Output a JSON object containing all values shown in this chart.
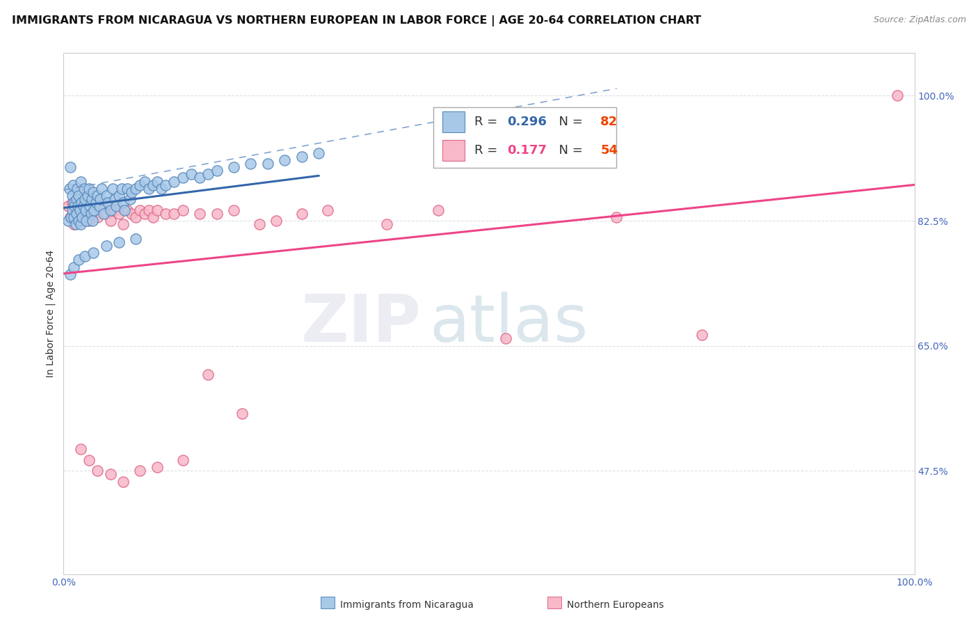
{
  "title": "IMMIGRANTS FROM NICARAGUA VS NORTHERN EUROPEAN IN LABOR FORCE | AGE 20-64 CORRELATION CHART",
  "source": "Source: ZipAtlas.com",
  "ylabel": "In Labor Force | Age 20-64",
  "legend_label_blue": "Immigrants from Nicaragua",
  "legend_label_pink": "Northern Europeans",
  "r_blue": 0.296,
  "n_blue": 82,
  "r_pink": 0.177,
  "n_pink": 54,
  "color_blue_fill": "#a8c8e8",
  "color_blue_edge": "#5588bb",
  "color_blue_line": "#3366aa",
  "color_blue_dash": "#7799cc",
  "color_pink_fill": "#f8b8c8",
  "color_pink_edge": "#dd6688",
  "color_pink_line": "#ee4488",
  "xlim": [
    0.0,
    1.0
  ],
  "ylim": [
    0.33,
    1.06
  ],
  "ytick_positions": [
    0.475,
    0.65,
    0.825,
    1.0
  ],
  "ytick_labels": [
    "47.5%",
    "65.0%",
    "82.5%",
    "100.0%"
  ],
  "grid_color": "#e0e0e8",
  "background_color": "#ffffff",
  "title_color": "#111111",
  "source_color": "#888888",
  "tick_color": "#4466bb",
  "title_fontsize": 11.5,
  "tick_fontsize": 10,
  "legend_r_blue_color": "#3366aa",
  "legend_n_blue_color": "#ee4400",
  "legend_r_pink_color": "#ee4488",
  "legend_n_pink_color": "#ee4400",
  "blue_scatter_x": [
    0.005,
    0.007,
    0.008,
    0.009,
    0.01,
    0.01,
    0.011,
    0.012,
    0.012,
    0.013,
    0.014,
    0.015,
    0.015,
    0.016,
    0.017,
    0.018,
    0.018,
    0.019,
    0.02,
    0.02,
    0.021,
    0.022,
    0.023,
    0.024,
    0.025,
    0.026,
    0.027,
    0.028,
    0.03,
    0.031,
    0.032,
    0.033,
    0.034,
    0.035,
    0.036,
    0.038,
    0.04,
    0.042,
    0.043,
    0.045,
    0.047,
    0.05,
    0.052,
    0.055,
    0.058,
    0.06,
    0.062,
    0.065,
    0.068,
    0.07,
    0.072,
    0.075,
    0.078,
    0.08,
    0.085,
    0.09,
    0.095,
    0.1,
    0.105,
    0.11,
    0.115,
    0.12,
    0.13,
    0.14,
    0.15,
    0.16,
    0.17,
    0.18,
    0.2,
    0.22,
    0.24,
    0.26,
    0.28,
    0.3,
    0.008,
    0.012,
    0.018,
    0.025,
    0.035,
    0.05,
    0.065,
    0.085
  ],
  "blue_scatter_y": [
    0.825,
    0.87,
    0.9,
    0.83,
    0.86,
    0.84,
    0.875,
    0.85,
    0.83,
    0.845,
    0.82,
    0.855,
    0.835,
    0.87,
    0.845,
    0.825,
    0.86,
    0.84,
    0.88,
    0.82,
    0.85,
    0.83,
    0.845,
    0.87,
    0.855,
    0.84,
    0.825,
    0.86,
    0.87,
    0.845,
    0.835,
    0.855,
    0.825,
    0.865,
    0.84,
    0.85,
    0.86,
    0.845,
    0.855,
    0.87,
    0.835,
    0.86,
    0.85,
    0.84,
    0.87,
    0.855,
    0.845,
    0.86,
    0.87,
    0.85,
    0.84,
    0.87,
    0.855,
    0.865,
    0.87,
    0.875,
    0.88,
    0.87,
    0.875,
    0.88,
    0.87,
    0.875,
    0.88,
    0.885,
    0.89,
    0.885,
    0.89,
    0.895,
    0.9,
    0.905,
    0.905,
    0.91,
    0.915,
    0.92,
    0.75,
    0.76,
    0.77,
    0.775,
    0.78,
    0.79,
    0.795,
    0.8
  ],
  "pink_scatter_x": [
    0.005,
    0.008,
    0.01,
    0.012,
    0.015,
    0.018,
    0.02,
    0.022,
    0.025,
    0.028,
    0.03,
    0.033,
    0.036,
    0.04,
    0.045,
    0.05,
    0.055,
    0.06,
    0.065,
    0.07,
    0.075,
    0.08,
    0.085,
    0.09,
    0.095,
    0.1,
    0.105,
    0.11,
    0.12,
    0.13,
    0.14,
    0.16,
    0.18,
    0.2,
    0.23,
    0.25,
    0.28,
    0.31,
    0.38,
    0.44,
    0.52,
    0.65,
    0.75,
    0.98,
    0.02,
    0.03,
    0.04,
    0.055,
    0.07,
    0.09,
    0.11,
    0.14,
    0.17,
    0.21
  ],
  "pink_scatter_y": [
    0.845,
    0.83,
    0.85,
    0.82,
    0.84,
    0.83,
    0.855,
    0.825,
    0.84,
    0.835,
    0.825,
    0.84,
    0.835,
    0.83,
    0.845,
    0.835,
    0.825,
    0.84,
    0.835,
    0.82,
    0.84,
    0.835,
    0.83,
    0.84,
    0.835,
    0.84,
    0.83,
    0.84,
    0.835,
    0.835,
    0.84,
    0.835,
    0.835,
    0.84,
    0.82,
    0.825,
    0.835,
    0.84,
    0.82,
    0.84,
    0.66,
    0.83,
    0.665,
    1.0,
    0.505,
    0.49,
    0.475,
    0.47,
    0.46,
    0.475,
    0.48,
    0.49,
    0.61,
    0.555
  ],
  "watermark_zip_color": "#ccccdd",
  "watermark_atlas_color": "#aaccdd"
}
